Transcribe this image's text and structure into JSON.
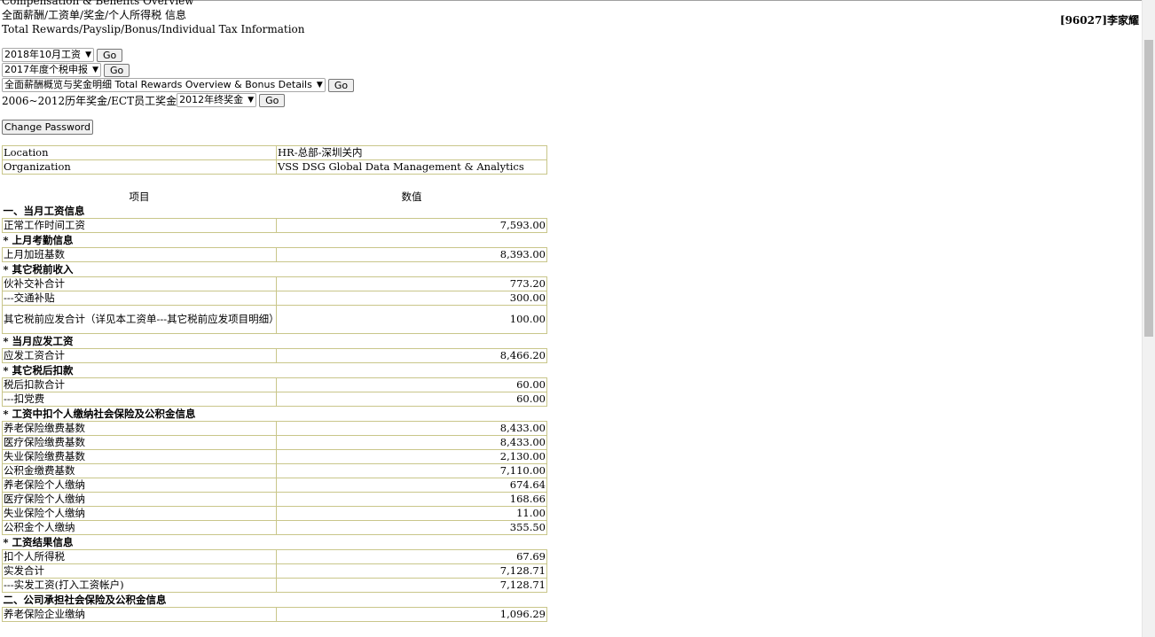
{
  "header": {
    "title_partial": "Compensation & Benefits Overview",
    "title_cn": "全面薪酬/工资单/奖金/个人所得税 信息",
    "title_en": "Total Rewards/Payslip/Bonus/Individual Tax Information",
    "user": "[96027]李家耀"
  },
  "controls": {
    "row1": {
      "selected": "2018年10月工资",
      "go": "Go"
    },
    "row2": {
      "selected": "2017年度个税申报",
      "go": "Go"
    },
    "row3": {
      "selected": "全面薪酬概览与奖金明细 Total Rewards Overview & Bonus Details",
      "go": "Go"
    },
    "row4": {
      "label": "2006~2012历年奖金/ECT员工奖金",
      "selected": "2012年终奖金",
      "go": "Go"
    },
    "change_password": "Change Password"
  },
  "info": {
    "rows": [
      {
        "label": "Location",
        "value": "HR-总部-深圳关内"
      },
      {
        "label": "Organization",
        "value": "VSS DSG Global Data Management & Analytics"
      }
    ]
  },
  "pay": {
    "col_item": "项目",
    "col_value": "数值",
    "rows": [
      {
        "type": "section",
        "label": "一、当月工资信息"
      },
      {
        "type": "item",
        "label": "正常工作时间工资",
        "value": "7,593.00"
      },
      {
        "type": "section",
        "label": "* 上月考勤信息"
      },
      {
        "type": "item",
        "label": "上月加班基数",
        "value": "8,393.00"
      },
      {
        "type": "section",
        "label": "* 其它税前收入"
      },
      {
        "type": "item",
        "label": "伙补交补合计",
        "value": "773.20"
      },
      {
        "type": "item",
        "label": "---交通补贴",
        "value": "300.00"
      },
      {
        "type": "item",
        "label": "其它税前应发合计（详见本工资单---其它税前应发项目明细）",
        "value": "100.00",
        "tall": true
      },
      {
        "type": "section",
        "label": "* 当月应发工资"
      },
      {
        "type": "item",
        "label": "应发工资合计",
        "value": "8,466.20"
      },
      {
        "type": "section",
        "label": "* 其它税后扣款"
      },
      {
        "type": "item",
        "label": "税后扣款合计",
        "value": "60.00"
      },
      {
        "type": "item",
        "label": "---扣党费",
        "value": "60.00"
      },
      {
        "type": "section",
        "label": "* 工资中扣个人缴纳社会保险及公积金信息"
      },
      {
        "type": "item",
        "label": "养老保险缴费基数",
        "value": "8,433.00"
      },
      {
        "type": "item",
        "label": "医疗保险缴费基数",
        "value": "8,433.00"
      },
      {
        "type": "item",
        "label": "失业保险缴费基数",
        "value": "2,130.00"
      },
      {
        "type": "item",
        "label": "公积金缴费基数",
        "value": "7,110.00"
      },
      {
        "type": "item",
        "label": "养老保险个人缴纳",
        "value": "674.64"
      },
      {
        "type": "item",
        "label": "医疗保险个人缴纳",
        "value": "168.66"
      },
      {
        "type": "item",
        "label": "失业保险个人缴纳",
        "value": "11.00"
      },
      {
        "type": "item",
        "label": "公积金个人缴纳",
        "value": "355.50"
      },
      {
        "type": "section",
        "label": "* 工资结果信息"
      },
      {
        "type": "item",
        "label": "扣个人所得税",
        "value": "67.69"
      },
      {
        "type": "item",
        "label": "实发合计",
        "value": "7,128.71"
      },
      {
        "type": "item",
        "label": "---实发工资(打入工资帐户)",
        "value": "7,128.71"
      },
      {
        "type": "section",
        "label": "二、公司承担社会保险及公积金信息"
      },
      {
        "type": "item",
        "label": "养老保险企业缴纳",
        "value": "1,096.29"
      }
    ]
  }
}
